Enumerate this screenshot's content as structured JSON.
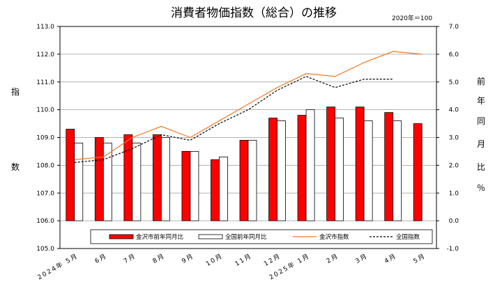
{
  "chart_data": {
    "type": "bar+line",
    "title": "消費者物価指数（総合）の推移",
    "note": "2020年＝100",
    "ylabel_left": [
      "指",
      "数"
    ],
    "ylabel_right": [
      "前",
      "年",
      "同",
      "月",
      "比",
      "％"
    ],
    "categories": [
      "2024年 5月",
      "6月",
      "7月",
      "8月",
      "9月",
      "10月",
      "11月",
      "12月",
      "2025年 1月",
      "2月",
      "3月",
      "4月",
      "5月"
    ],
    "y_left": {
      "min": 105.0,
      "max": 113.0,
      "step": 1.0,
      "ticks": [
        "105.0",
        "106.0",
        "107.0",
        "108.0",
        "109.0",
        "110.0",
        "111.0",
        "112.0",
        "113.0"
      ]
    },
    "y_right": {
      "min": -1.0,
      "max": 7.0,
      "step": 1.0,
      "ticks": [
        "-1.0",
        "0.0",
        "1.0",
        "2.0",
        "3.0",
        "4.0",
        "5.0",
        "6.0",
        "7.0"
      ]
    },
    "grid": true,
    "legend_position": "bottom-inside",
    "series": [
      {
        "name": "金沢市前年同月比",
        "kind": "bar",
        "axis": "right",
        "color": "#ff0000",
        "values": [
          3.3,
          3.0,
          3.1,
          3.1,
          2.5,
          2.2,
          2.9,
          3.7,
          3.8,
          4.1,
          4.1,
          3.9,
          3.5
        ]
      },
      {
        "name": "全国前年同月比",
        "kind": "bar",
        "axis": "right",
        "color": "#ffffff",
        "values": [
          2.8,
          2.8,
          2.8,
          3.0,
          2.5,
          2.3,
          2.9,
          3.6,
          4.0,
          3.7,
          3.6,
          3.6,
          null
        ]
      },
      {
        "name": "金沢市指数",
        "kind": "line",
        "axis": "left",
        "color": "#f07820",
        "values": [
          108.2,
          108.3,
          109.0,
          109.4,
          109.0,
          109.6,
          110.2,
          110.8,
          111.3,
          111.2,
          111.7,
          112.1,
          112.0
        ]
      },
      {
        "name": "全国指数",
        "kind": "line",
        "axis": "left",
        "color": "#000000",
        "dashed": true,
        "values": [
          108.1,
          108.2,
          108.6,
          109.1,
          108.9,
          109.5,
          110.0,
          110.7,
          111.2,
          110.8,
          111.1,
          111.1,
          null
        ]
      }
    ]
  }
}
